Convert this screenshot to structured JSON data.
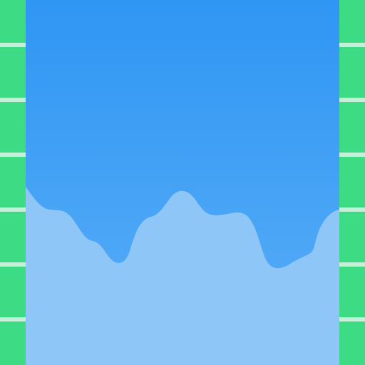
{
  "colors": {
    "sky_top": "#2f96f3",
    "sky_bottom": "#5aaef7",
    "terrain": "#8ec6f7",
    "wall": "#3ddc84",
    "wall_stripe": "#cdeedd"
  },
  "walls": {
    "left": {
      "stripe_count": 6
    },
    "right": {
      "stripe_count": 6
    }
  },
  "terrain": {
    "shape": "smooth-hills"
  }
}
